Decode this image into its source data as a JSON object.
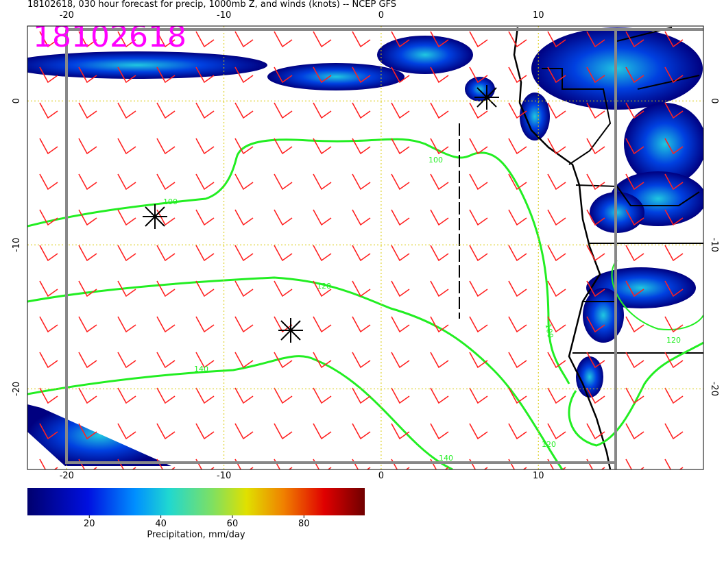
{
  "header": {
    "title": "18102618, 030 hour forecast for precip, 1000mb Z, and winds (knots) -- NCEP GFS",
    "stamp": "18102618"
  },
  "map": {
    "xlim": [
      -22.5,
      20.5
    ],
    "ylim": [
      -25.6,
      5.2
    ],
    "xticks": [
      -20,
      -10,
      0,
      10
    ],
    "yticks": [
      0,
      -10,
      -20
    ]
  },
  "contour_labels": [
    "100",
    "100",
    "120",
    "140",
    "100",
    "120",
    "140",
    "120"
  ],
  "colorbar": {
    "label": "Precipitation, mm/day",
    "lim": [
      2.7,
      97
    ],
    "ticks": [
      20,
      40,
      60,
      80
    ]
  }
}
